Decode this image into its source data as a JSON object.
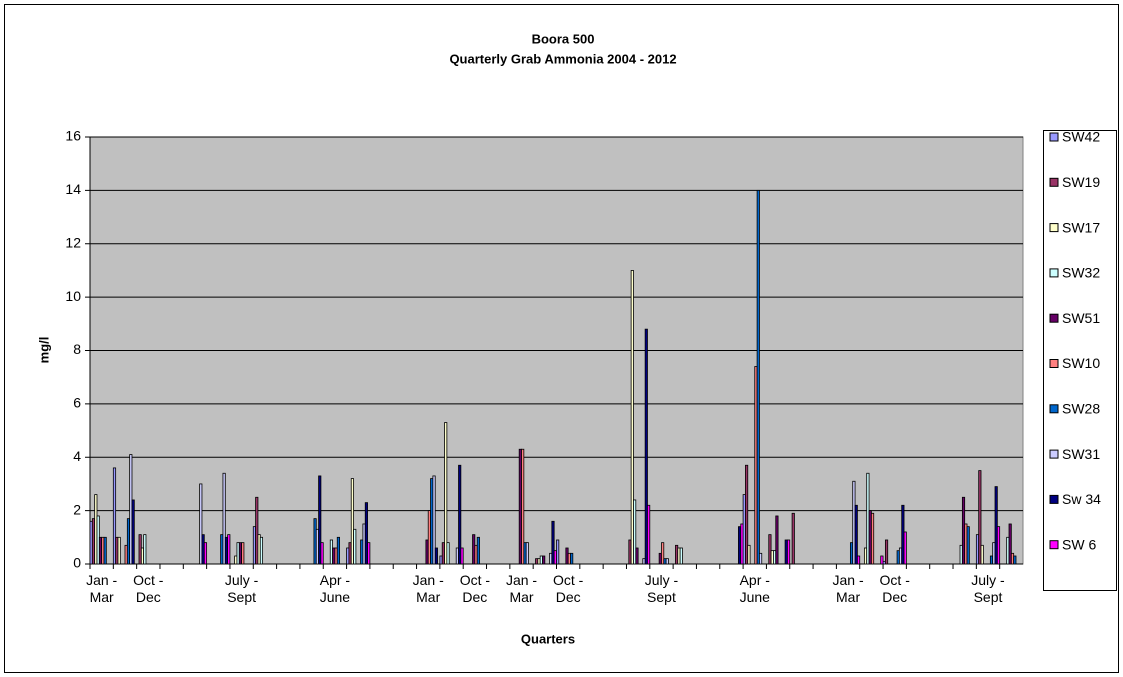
{
  "chart_data": {
    "type": "bar",
    "title": "Boora 500",
    "subtitle": "Quarterly Grab Ammonia 2004 - 2012",
    "x_label": "Quarters",
    "y_label": "mg/l",
    "categories": [
      "Jan - Mar",
      null,
      "Oct - Dec",
      null,
      null,
      null,
      "July - Sept",
      null,
      null,
      null,
      "Apr - June",
      null,
      null,
      null,
      "Jan - Mar",
      null,
      "Oct - Dec",
      null,
      "Jan - Mar",
      null,
      "Oct - Dec",
      null,
      null,
      null,
      "July - Sept",
      null,
      null,
      null,
      "Apr - June",
      null,
      null,
      null,
      "Jan - Mar",
      null,
      "Oct - Dec",
      null,
      null,
      null,
      "July - Sept",
      null
    ],
    "series": [
      {
        "name": "SW42",
        "color": "#9999ff",
        "values": [
          1.6,
          3.6,
          null,
          null,
          null,
          null,
          null,
          1.4,
          null,
          null,
          null,
          0.6,
          null,
          null,
          null,
          0.3,
          null,
          null,
          null,
          null,
          0.9,
          null,
          null,
          null,
          null,
          null,
          null,
          null,
          2.6,
          null,
          null,
          null,
          null,
          null,
          0.1,
          null,
          null,
          null,
          1.1,
          null
        ]
      },
      {
        "name": "SW19",
        "color": "#993366",
        "values": [
          1.7,
          1.0,
          1.1,
          null,
          null,
          null,
          null,
          2.5,
          null,
          null,
          null,
          0.8,
          null,
          null,
          null,
          0.8,
          null,
          null,
          null,
          0.2,
          null,
          null,
          null,
          0.9,
          null,
          0.7,
          null,
          null,
          3.7,
          1.1,
          1.9,
          null,
          null,
          null,
          0.9,
          null,
          null,
          null,
          3.5,
          null
        ]
      },
      {
        "name": "SW17",
        "color": "#ffffcc",
        "values": [
          2.6,
          1.0,
          0.6,
          null,
          null,
          null,
          0.3,
          1.1,
          null,
          null,
          null,
          3.2,
          null,
          null,
          null,
          5.3,
          null,
          null,
          null,
          0.2,
          null,
          null,
          null,
          11.0,
          null,
          0.6,
          null,
          null,
          0.7,
          0.5,
          null,
          null,
          null,
          0.6,
          null,
          null,
          null,
          null,
          0.7,
          null
        ]
      },
      {
        "name": "SW32",
        "color": "#ccffff",
        "values": [
          1.8,
          null,
          1.1,
          null,
          null,
          null,
          0.8,
          1.0,
          null,
          null,
          0.9,
          1.3,
          null,
          null,
          null,
          0.8,
          null,
          null,
          null,
          0.3,
          null,
          null,
          null,
          2.4,
          null,
          0.6,
          null,
          null,
          null,
          0.5,
          null,
          null,
          null,
          3.4,
          null,
          null,
          null,
          0.7,
          null,
          1.0
        ]
      },
      {
        "name": "SW51",
        "color": "#660066",
        "values": [
          1.0,
          null,
          null,
          null,
          null,
          null,
          0.8,
          null,
          null,
          null,
          0.6,
          null,
          null,
          null,
          0.9,
          null,
          1.1,
          null,
          4.3,
          0.3,
          0.6,
          null,
          null,
          0.6,
          0.4,
          null,
          null,
          null,
          null,
          1.8,
          null,
          null,
          null,
          2.0,
          null,
          null,
          null,
          2.5,
          null,
          1.5
        ]
      },
      {
        "name": "SW10",
        "color": "#ff8080",
        "values": [
          1.0,
          0.7,
          null,
          null,
          null,
          null,
          0.8,
          null,
          null,
          null,
          0.6,
          null,
          null,
          null,
          2.0,
          null,
          0.7,
          null,
          4.3,
          null,
          0.4,
          null,
          null,
          null,
          0.8,
          null,
          null,
          null,
          7.4,
          null,
          null,
          null,
          null,
          1.9,
          null,
          null,
          null,
          1.5,
          null,
          0.4
        ]
      },
      {
        "name": "SW28",
        "color": "#0066cc",
        "values": [
          1.0,
          1.7,
          null,
          null,
          null,
          1.1,
          null,
          null,
          null,
          1.7,
          1.0,
          0.9,
          null,
          null,
          3.2,
          null,
          1.0,
          null,
          0.8,
          null,
          0.4,
          null,
          null,
          null,
          0.2,
          null,
          null,
          null,
          14.0,
          null,
          null,
          null,
          0.8,
          null,
          0.5,
          null,
          null,
          1.4,
          0.3,
          0.3
        ]
      },
      {
        "name": "SW31",
        "color": "#ccccff",
        "values": [
          null,
          4.1,
          null,
          null,
          3.0,
          3.4,
          null,
          null,
          null,
          1.3,
          null,
          1.5,
          null,
          null,
          3.3,
          0.6,
          null,
          null,
          0.8,
          0.4,
          null,
          null,
          null,
          0.2,
          0.2,
          null,
          null,
          null,
          0.4,
          null,
          null,
          null,
          3.1,
          null,
          0.6,
          null,
          null,
          null,
          0.8,
          null
        ]
      },
      {
        "name": "Sw 34",
        "color": "#000080",
        "values": [
          null,
          2.4,
          null,
          null,
          1.1,
          1.0,
          null,
          null,
          null,
          3.3,
          null,
          2.3,
          null,
          null,
          0.6,
          3.7,
          null,
          null,
          null,
          1.6,
          null,
          null,
          null,
          8.8,
          null,
          null,
          null,
          1.4,
          null,
          0.9,
          null,
          null,
          2.2,
          null,
          2.2,
          null,
          null,
          null,
          2.9,
          null
        ]
      },
      {
        "name": "SW 6",
        "color": "#ff00ff",
        "values": [
          null,
          null,
          null,
          null,
          0.8,
          1.1,
          null,
          null,
          null,
          0.8,
          null,
          0.8,
          null,
          null,
          null,
          0.6,
          null,
          null,
          null,
          0.5,
          null,
          null,
          null,
          2.2,
          null,
          null,
          null,
          1.5,
          null,
          0.9,
          null,
          null,
          0.3,
          0.3,
          1.2,
          null,
          null,
          null,
          1.4,
          null
        ]
      }
    ],
    "ylim": [
      0,
      16
    ],
    "yticks": [
      0,
      2,
      4,
      6,
      8,
      10,
      12,
      14,
      16
    ],
    "grid": true,
    "plot_background": "#c0c0c0",
    "bar_outline": "#000000",
    "legend_position": "right"
  }
}
